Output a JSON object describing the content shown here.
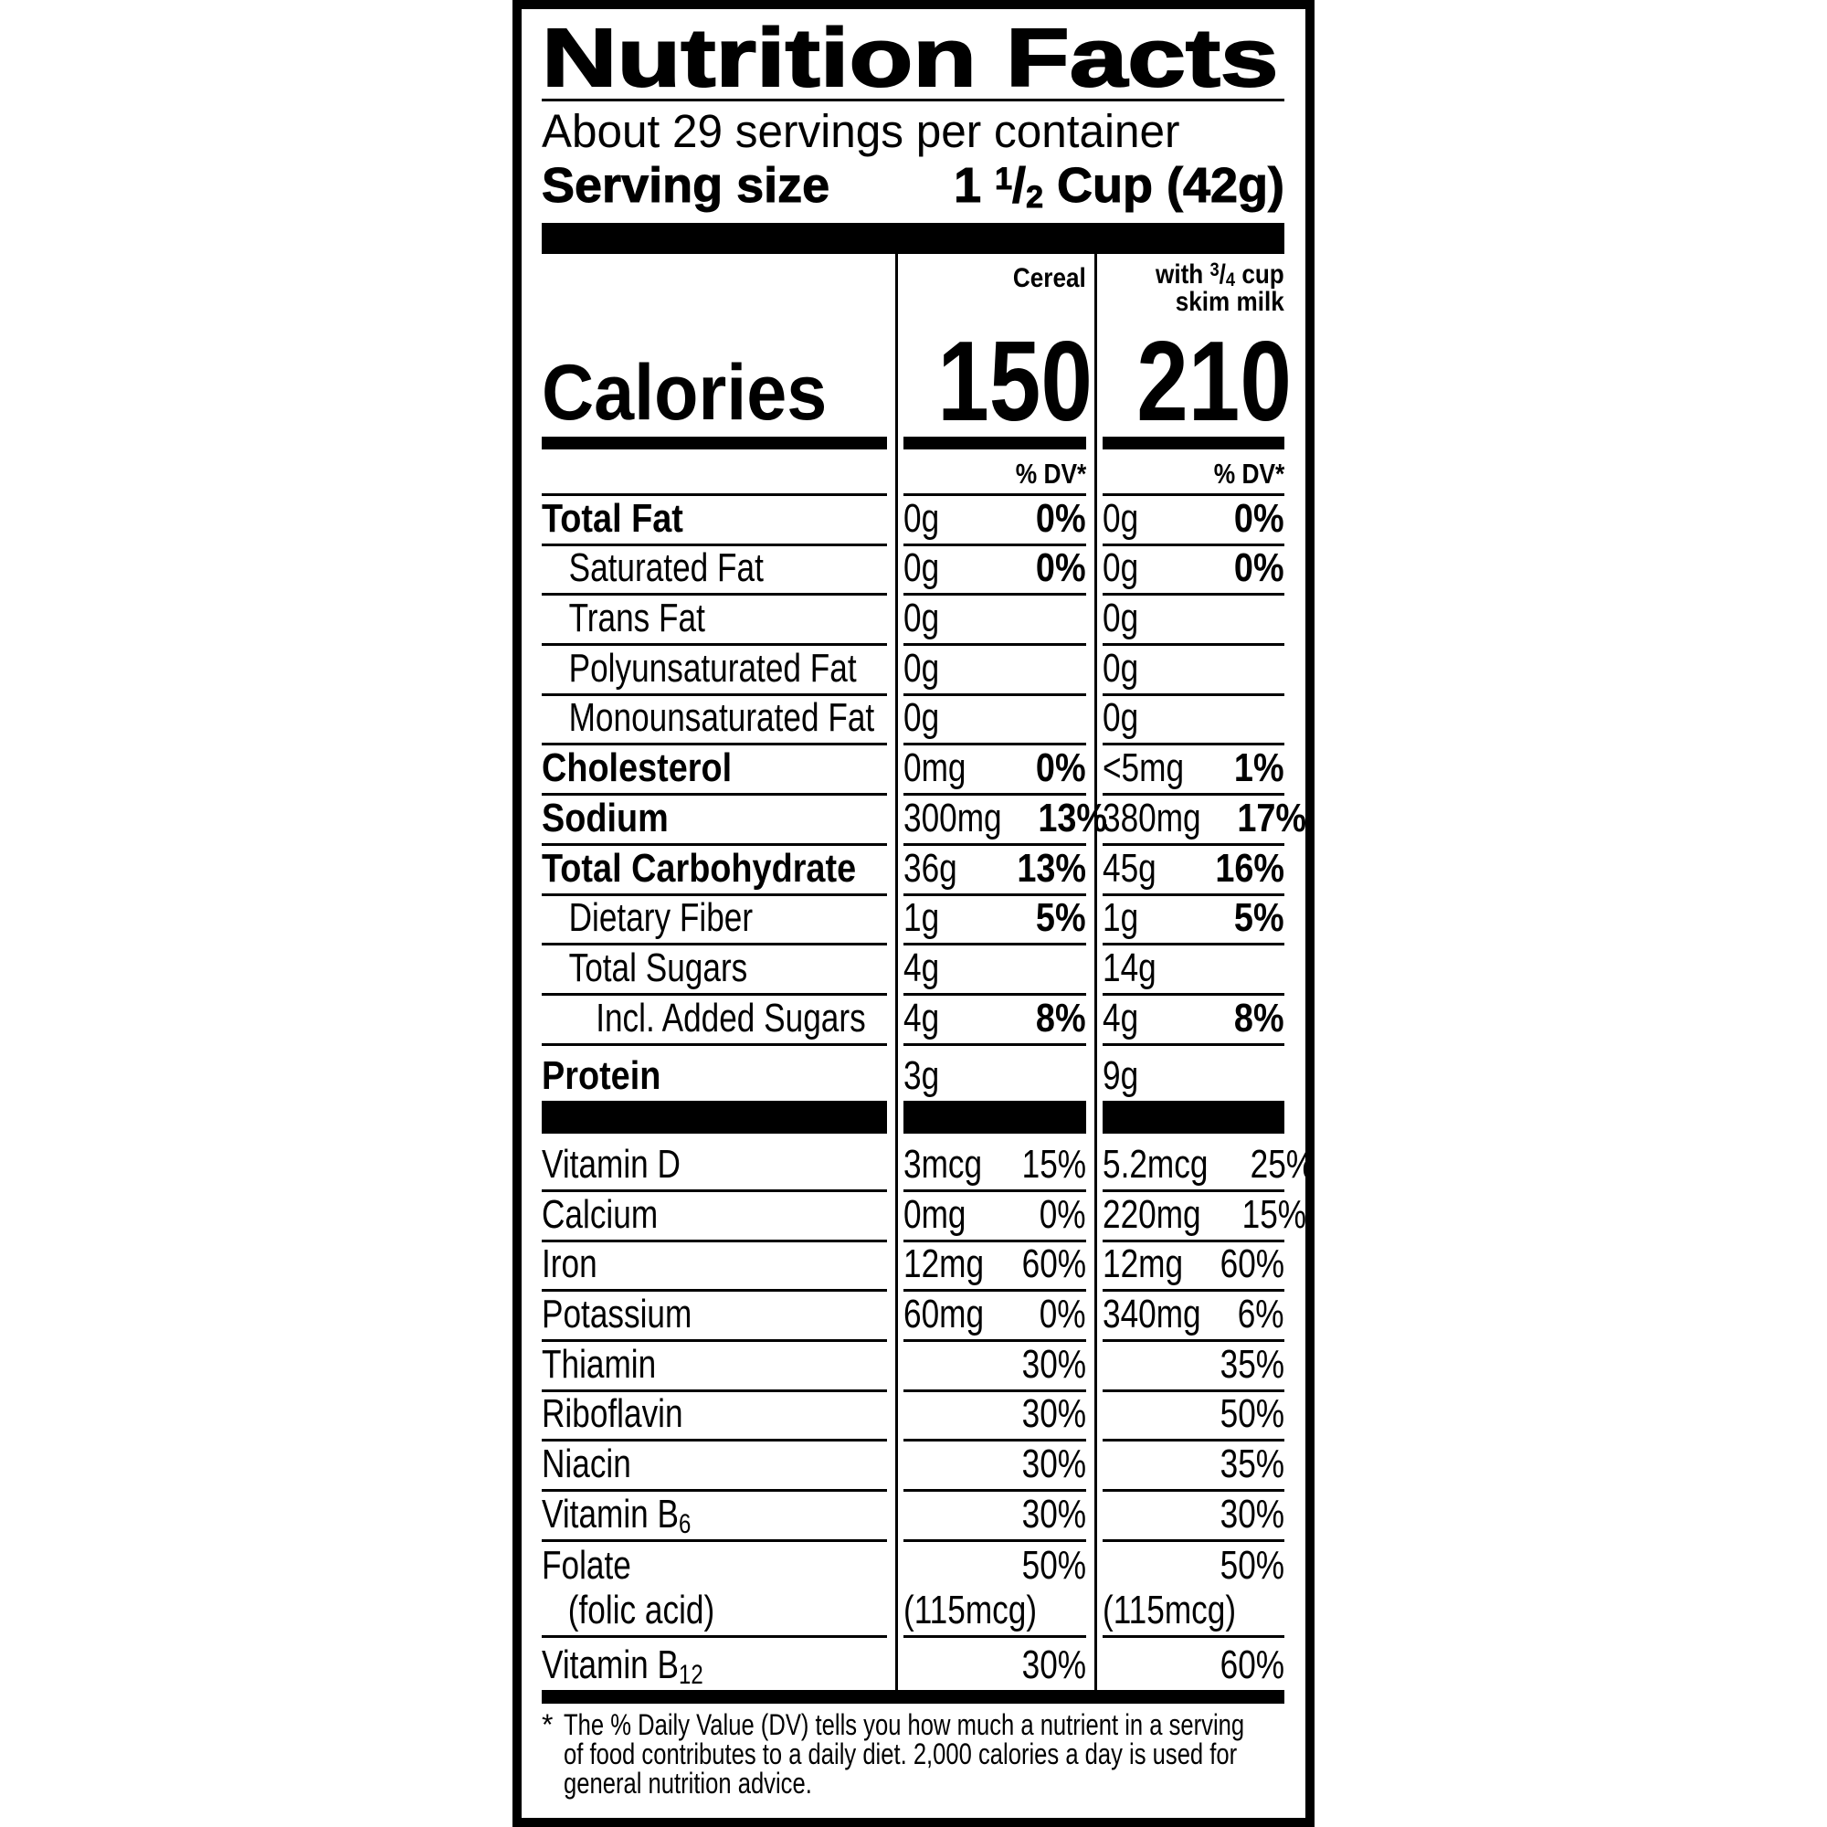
{
  "title": "Nutrition Facts",
  "servings_per_container": "About 29 servings per container",
  "serving_size": {
    "label": "Serving size",
    "whole": "1",
    "num": "1",
    "slash": "/",
    "den": "2",
    "unit": "Cup (42g)"
  },
  "columns": {
    "cereal": {
      "header": "Cereal",
      "calories": "150",
      "dv_header": "% DV*"
    },
    "milk": {
      "header_with": "with",
      "num": "3",
      "slash": "/",
      "den": "4",
      "header_cup": "cup",
      "header_line2": "skim milk",
      "calories": "210",
      "dv_header": "% DV*"
    }
  },
  "calories_label": "Calories",
  "nutrients": [
    {
      "label": "Total Fat",
      "indent": 0,
      "cereal": {
        "amount": "0g",
        "dv": "0%"
      },
      "milk": {
        "amount": "0g",
        "dv": "0%"
      }
    },
    {
      "label": "Saturated Fat",
      "indent": 1,
      "cereal": {
        "amount": "0g",
        "dv": "0%"
      },
      "milk": {
        "amount": "0g",
        "dv": "0%"
      }
    },
    {
      "label": "Trans Fat",
      "indent": 1,
      "cereal": {
        "amount": "0g",
        "dv": ""
      },
      "milk": {
        "amount": "0g",
        "dv": ""
      }
    },
    {
      "label": "Polyunsaturated Fat",
      "indent": 1,
      "cereal": {
        "amount": "0g",
        "dv": ""
      },
      "milk": {
        "amount": "0g",
        "dv": ""
      }
    },
    {
      "label": "Monounsaturated Fat",
      "indent": 1,
      "cereal": {
        "amount": "0g",
        "dv": ""
      },
      "milk": {
        "amount": "0g",
        "dv": ""
      }
    },
    {
      "label": "Cholesterol",
      "indent": 0,
      "cereal": {
        "amount": "0mg",
        "dv": "0%"
      },
      "milk": {
        "amount": "<5mg",
        "dv": "1%"
      }
    },
    {
      "label": "Sodium",
      "indent": 0,
      "cereal": {
        "amount": "300mg",
        "dv": "13%"
      },
      "milk": {
        "amount": "380mg",
        "dv": "17%"
      }
    },
    {
      "label": "Total Carbohydrate",
      "indent": 0,
      "cereal": {
        "amount": "36g",
        "dv": "13%"
      },
      "milk": {
        "amount": "45g",
        "dv": "16%"
      }
    },
    {
      "label": "Dietary Fiber",
      "indent": 1,
      "cereal": {
        "amount": "1g",
        "dv": "5%"
      },
      "milk": {
        "amount": "1g",
        "dv": "5%"
      }
    },
    {
      "label": "Total Sugars",
      "indent": 1,
      "cereal": {
        "amount": "4g",
        "dv": ""
      },
      "milk": {
        "amount": "14g",
        "dv": ""
      }
    },
    {
      "label": "Incl. Added Sugars",
      "indent": 2,
      "cereal": {
        "amount": "4g",
        "dv": "8%"
      },
      "milk": {
        "amount": "4g",
        "dv": "8%"
      }
    },
    {
      "label": "Protein",
      "indent": 0,
      "cereal": {
        "amount": "3g",
        "dv": ""
      },
      "milk": {
        "amount": "9g",
        "dv": ""
      }
    }
  ],
  "vitamins": [
    {
      "label": "Vitamin D",
      "cereal": {
        "amount": "3mcg",
        "dv": "15%"
      },
      "milk": {
        "amount": "5.2mcg",
        "dv": "25%"
      }
    },
    {
      "label": "Calcium",
      "cereal": {
        "amount": "0mg",
        "dv": "0%"
      },
      "milk": {
        "amount": "220mg",
        "dv": "15%"
      }
    },
    {
      "label": "Iron",
      "cereal": {
        "amount": "12mg",
        "dv": "60%"
      },
      "milk": {
        "amount": "12mg",
        "dv": "60%"
      }
    },
    {
      "label": "Potassium",
      "cereal": {
        "amount": "60mg",
        "dv": "0%"
      },
      "milk": {
        "amount": "340mg",
        "dv": "6%"
      }
    },
    {
      "label": "Thiamin",
      "cereal": {
        "amount": "",
        "dv": "30%"
      },
      "milk": {
        "amount": "",
        "dv": "35%"
      }
    },
    {
      "label": "Riboflavin",
      "cereal": {
        "amount": "",
        "dv": "30%"
      },
      "milk": {
        "amount": "",
        "dv": "50%"
      }
    },
    {
      "label": "Niacin",
      "cereal": {
        "amount": "",
        "dv": "30%"
      },
      "milk": {
        "amount": "",
        "dv": "35%"
      }
    },
    {
      "label": "Vitamin B",
      "sub": "6",
      "cereal": {
        "amount": "",
        "dv": "30%"
      },
      "milk": {
        "amount": "",
        "dv": "30%"
      }
    },
    {
      "label": "Folate",
      "label2": "(folic acid)",
      "cereal": {
        "amount": "(115mcg)",
        "dv": "50%"
      },
      "milk": {
        "amount": "(115mcg)",
        "dv": "50%"
      }
    },
    {
      "label": "Vitamin B",
      "sub": "12",
      "cereal": {
        "amount": "",
        "dv": "30%"
      },
      "milk": {
        "amount": "",
        "dv": "60%"
      }
    }
  ],
  "footnote": {
    "asterisk": "*",
    "lines": [
      "The % Daily Value (DV) tells you how much a nutrient in a serving",
      "of food contributes to a daily diet. 2,000 calories a day is used for",
      "general nutrition advice."
    ]
  },
  "colors": {
    "ink": "#000000",
    "background": "#ffffff"
  }
}
